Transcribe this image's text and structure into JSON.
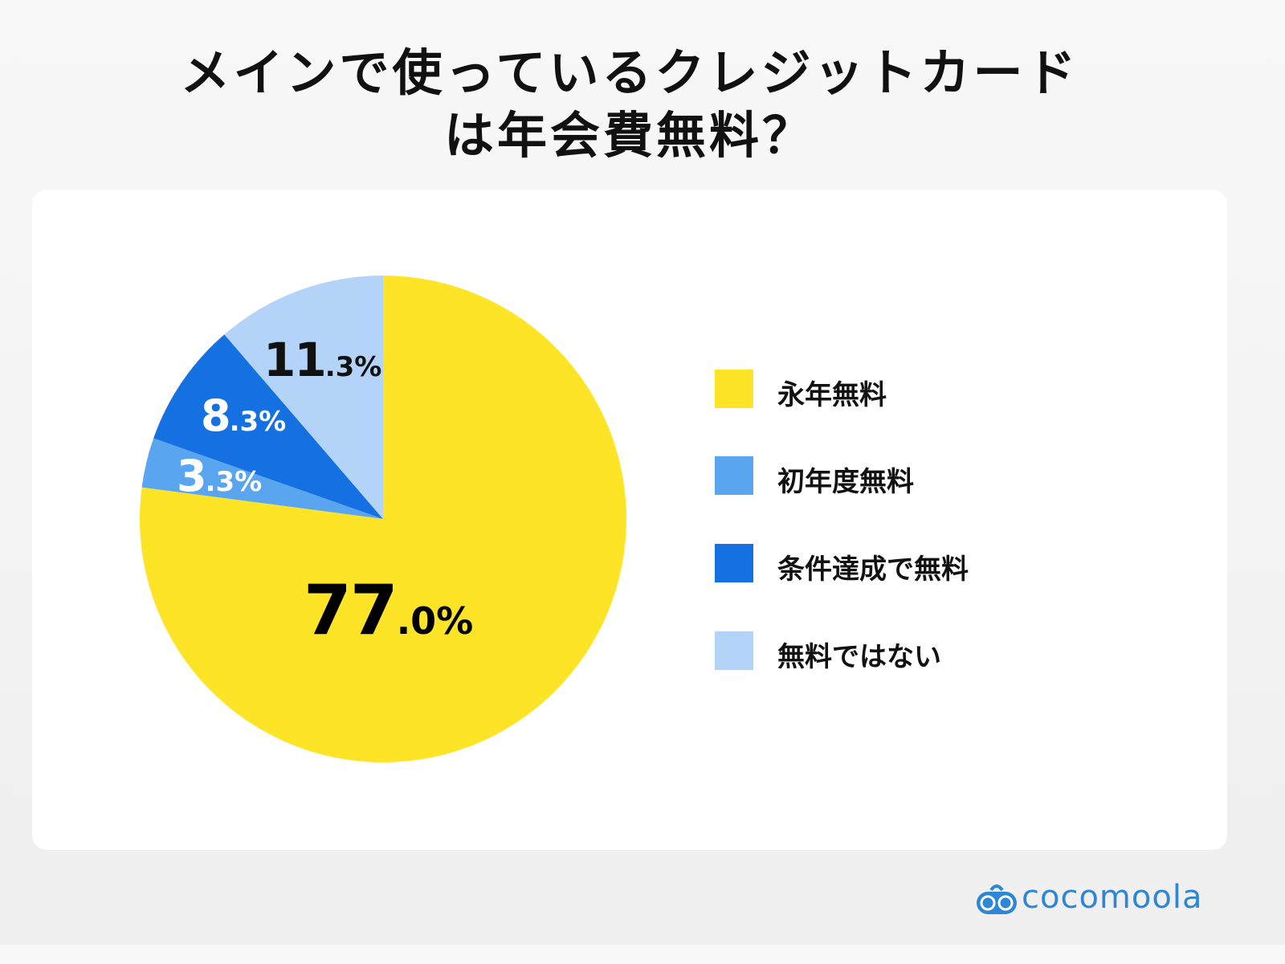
{
  "title": {
    "line1": "メインで使っているクレジットカード",
    "line2": "は年会費無料？"
  },
  "chart_data": {
    "type": "pie",
    "title": "メインで使っているクレジットカードは年会費無料？",
    "categories": [
      "永年無料",
      "初年度無料",
      "条件達成で無料",
      "無料ではない"
    ],
    "values": [
      77.0,
      3.3,
      8.3,
      11.3
    ],
    "colors": [
      "#fde426",
      "#5aa5ef",
      "#1570e1",
      "#b3d4f8"
    ],
    "labels": [
      {
        "int": "77",
        "dec": ".0%",
        "color": "#111111"
      },
      {
        "int": "3",
        "dec": ".3%",
        "color": "#ffffff"
      },
      {
        "int": "8",
        "dec": ".3%",
        "color": "#ffffff"
      },
      {
        "int": "11",
        "dec": ".3%",
        "color": "#111111"
      }
    ],
    "start_angle": "12 o'clock",
    "direction": "clockwise",
    "legend_position": "right"
  },
  "legend": {
    "items": [
      {
        "label": "永年無料",
        "color": "#fde426"
      },
      {
        "label": "初年度無料",
        "color": "#5aa5ef"
      },
      {
        "label": "条件達成で無料",
        "color": "#1570e1"
      },
      {
        "label": "無料ではない",
        "color": "#b3d4f8"
      }
    ]
  },
  "brand": {
    "name": "cocomoola",
    "icon": "binoculars-logo-icon",
    "color": "#2f86d4"
  }
}
